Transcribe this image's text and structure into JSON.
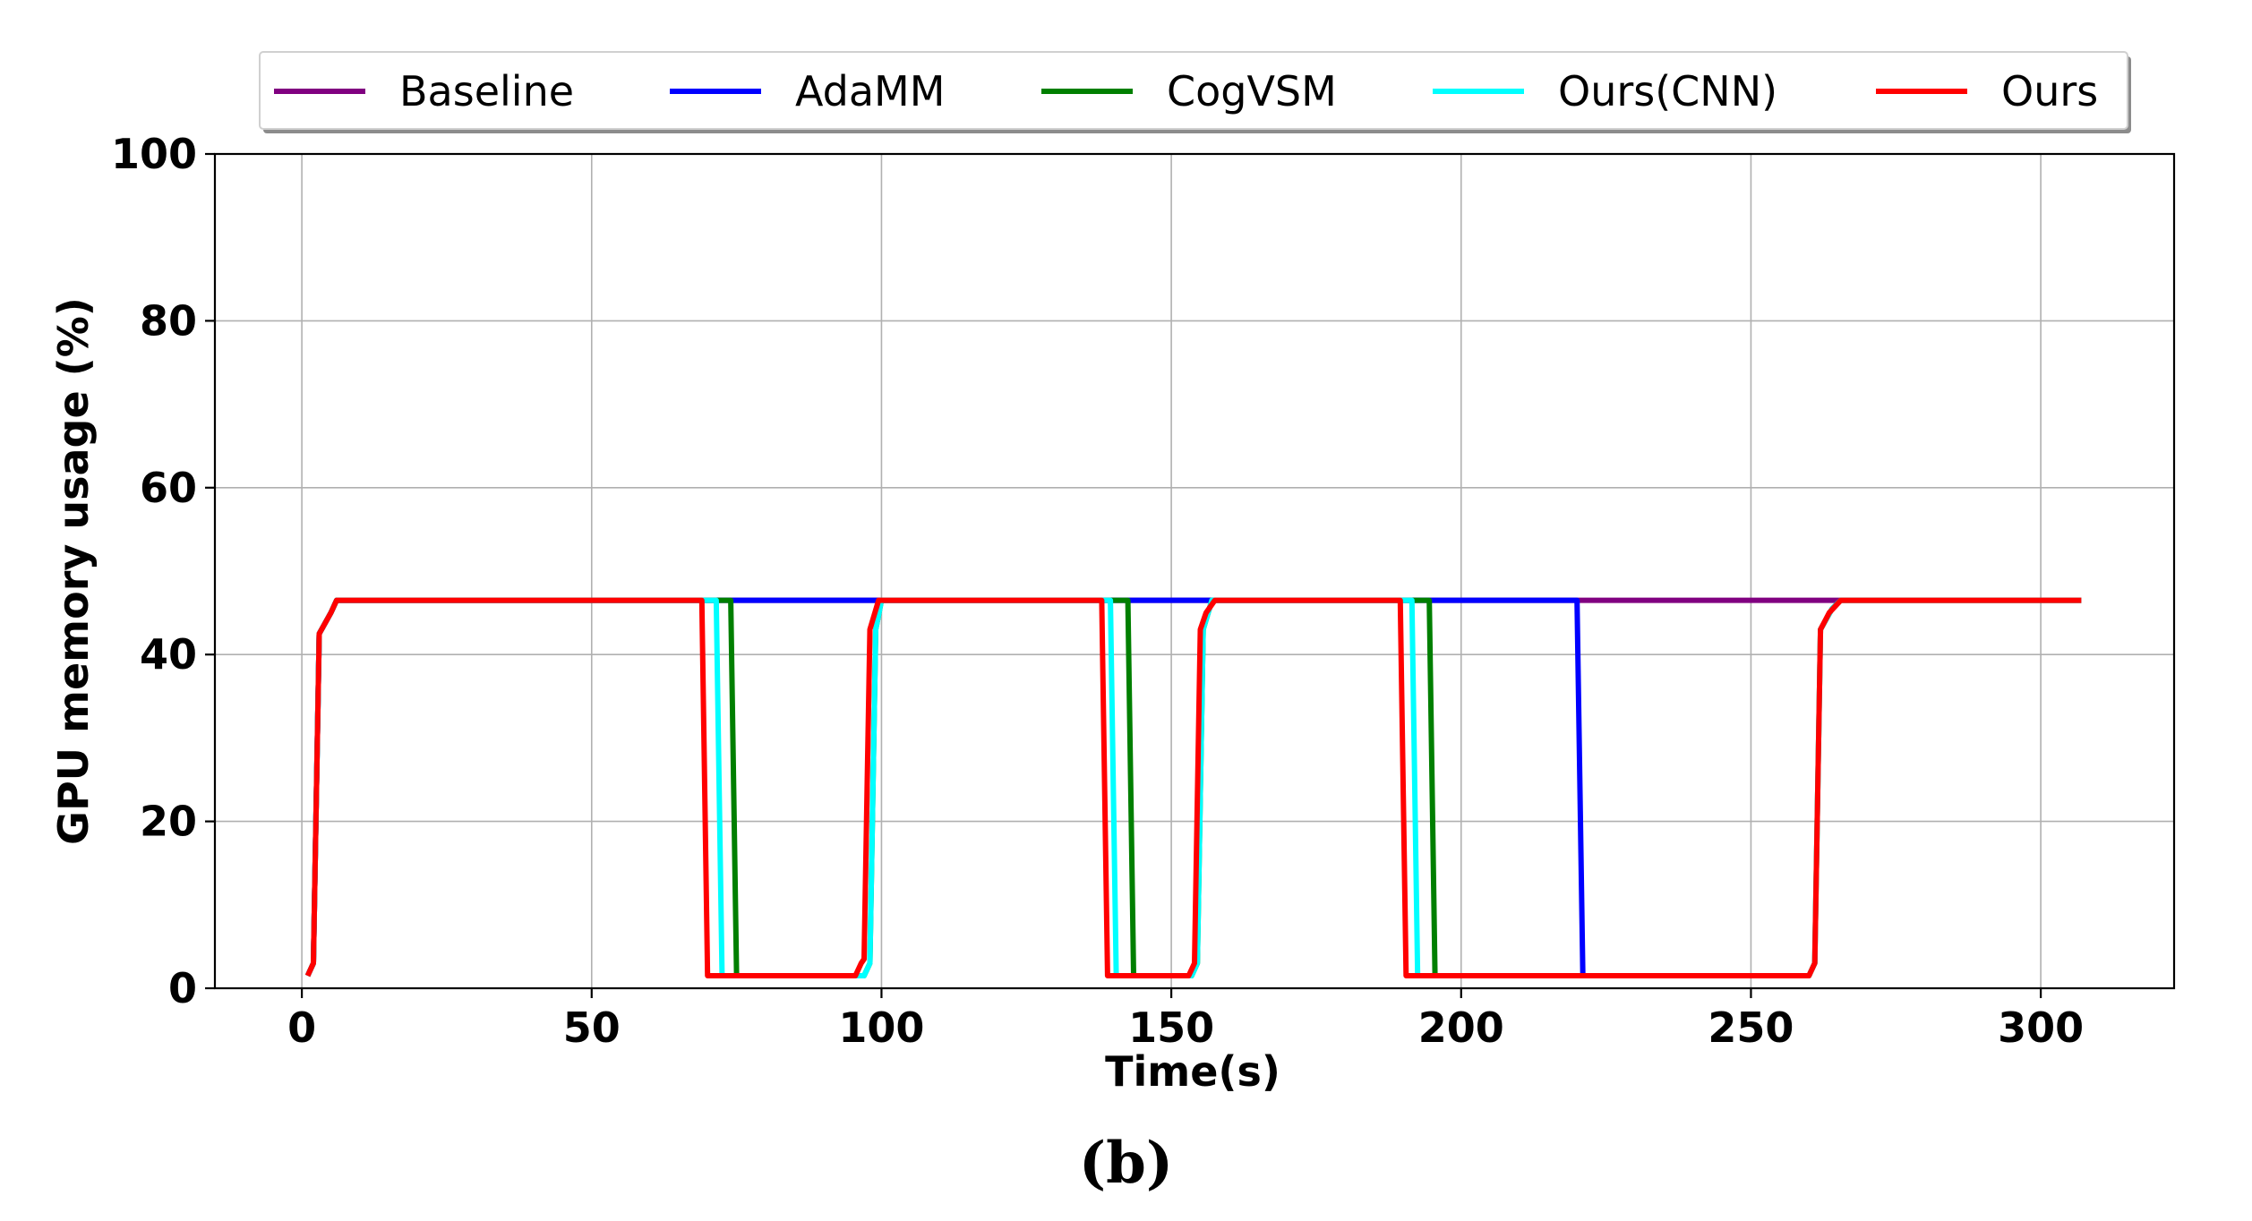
{
  "caption": "(b)",
  "chart_data": {
    "type": "line",
    "xlabel": "Time(s)",
    "ylabel": "GPU memory usage (%)",
    "xlim": [
      -15,
      323
    ],
    "ylim": [
      0,
      100
    ],
    "xticks": [
      0,
      50,
      100,
      150,
      200,
      250,
      300
    ],
    "yticks": [
      0,
      20,
      40,
      60,
      80,
      100
    ],
    "grid": true,
    "legend_position": "top, above plot",
    "series": [
      {
        "name": "Baseline",
        "color": "#800080",
        "x": [
          1,
          2,
          3,
          5,
          6,
          307
        ],
        "y": [
          1.5,
          3,
          42.5,
          45,
          46.5,
          46.5
        ]
      },
      {
        "name": "AdaMM",
        "color": "#0000ff",
        "x": [
          1,
          2,
          3,
          5,
          6,
          220,
          221,
          221.5
        ],
        "y": [
          1.5,
          3,
          42.5,
          45,
          46.5,
          46.5,
          1.5,
          1.5
        ]
      },
      {
        "name": "CogVSM",
        "color": "#007f00",
        "x": [
          1,
          2,
          3,
          5,
          6,
          74,
          75,
          76,
          97,
          98,
          99,
          100,
          142.5,
          143.5,
          144.5,
          153.5,
          154.5,
          155.5,
          157,
          194.5,
          195.5,
          196.5,
          260,
          261,
          262,
          264,
          265.5,
          307
        ],
        "y": [
          1.5,
          3,
          42.5,
          45,
          46.5,
          46.5,
          1.5,
          1.5,
          1.5,
          3,
          43,
          46.5,
          46.5,
          1.5,
          1.5,
          1.5,
          3,
          43,
          46.5,
          46.5,
          1.5,
          1.5,
          1.5,
          3,
          43,
          45.5,
          46.5,
          46.5
        ]
      },
      {
        "name": "Ours(CNN)",
        "color": "#00ffff",
        "x": [
          1,
          2,
          3,
          5,
          6,
          71.5,
          72.5,
          73,
          97,
          98,
          99,
          100,
          139.5,
          140.5,
          141,
          153.5,
          154.5,
          155.5,
          157,
          191.5,
          192.5,
          193,
          260,
          261,
          262,
          264,
          265.5,
          307
        ],
        "y": [
          1.5,
          3,
          42.5,
          45,
          46.5,
          46.5,
          1.5,
          1.5,
          1.5,
          3,
          43,
          46.5,
          46.5,
          1.5,
          1.5,
          1.5,
          3,
          43,
          46.5,
          46.5,
          1.5,
          1.5,
          1.5,
          3,
          43,
          45.5,
          46.5,
          46.5
        ]
      },
      {
        "name": "Ours",
        "color": "#ff0000",
        "x": [
          1,
          2,
          3,
          5,
          6,
          69,
          70,
          95.5,
          96.5,
          97,
          98,
          99.5,
          138,
          139,
          153,
          154,
          155,
          156,
          157.5,
          189.5,
          190.5,
          260,
          261,
          262,
          263.5,
          265.5,
          307
        ],
        "y": [
          1.5,
          3,
          42.5,
          45,
          46.5,
          46.5,
          1.5,
          1.5,
          3,
          3.5,
          43,
          46.5,
          46.5,
          1.5,
          1.5,
          3,
          43,
          45,
          46.5,
          46.5,
          1.5,
          1.5,
          3,
          43,
          45,
          46.5,
          46.5
        ]
      }
    ]
  }
}
